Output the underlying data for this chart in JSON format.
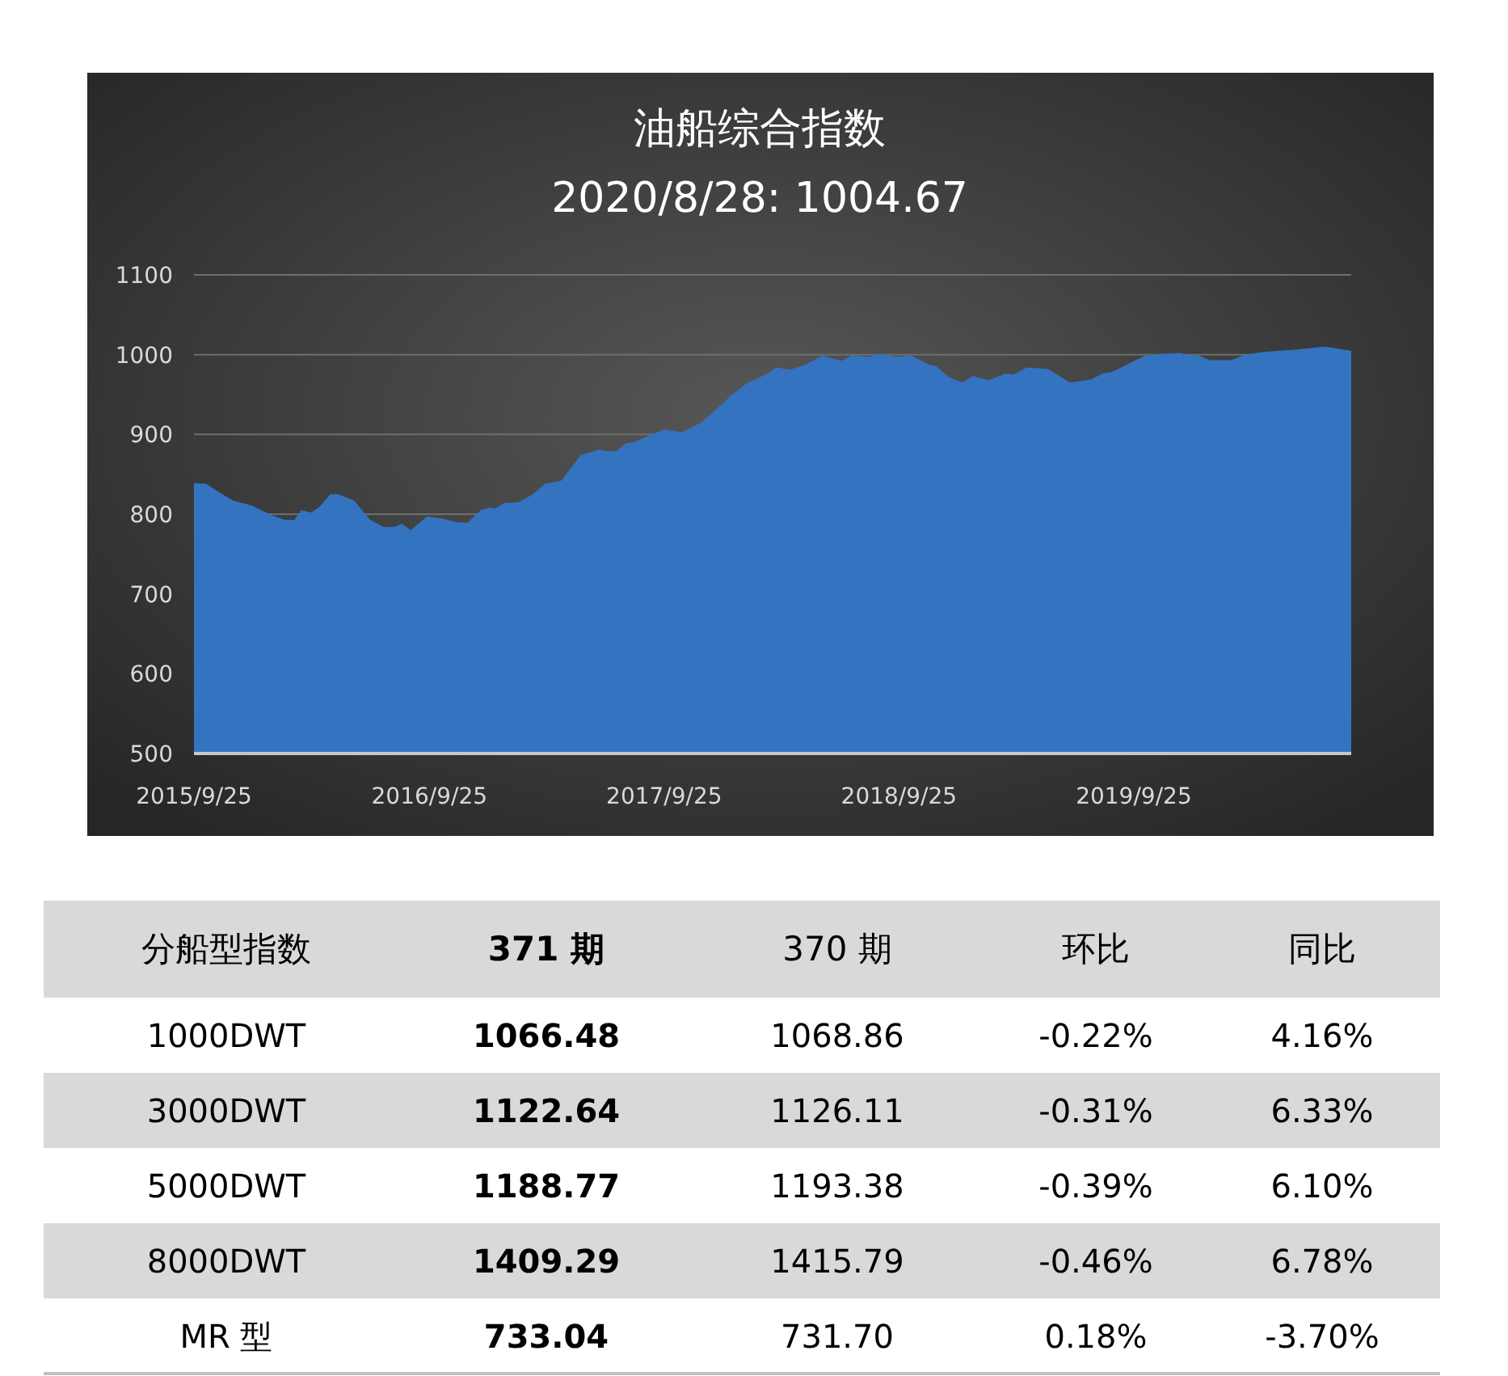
{
  "chart_data": [
    {
      "type": "area",
      "title": "油船综合指数",
      "subtitle": "2020/8/28: 1004.67",
      "x": [
        "2015-09-25",
        "2015-10-14",
        "2015-11-04",
        "2015-11-25",
        "2015-12-24",
        "2016-01-23",
        "2016-02-13",
        "2016-02-28",
        "2016-03-10",
        "2016-03-25",
        "2016-04-07",
        "2016-04-24",
        "2016-05-06",
        "2016-05-31",
        "2016-06-25",
        "2016-07-16",
        "2016-08-02",
        "2016-08-13",
        "2016-08-27",
        "2016-09-21",
        "2016-10-12",
        "2016-11-06",
        "2016-11-23",
        "2016-12-14",
        "2016-12-26",
        "2017-01-05",
        "2017-01-19",
        "2017-02-10",
        "2017-03-03",
        "2017-03-24",
        "2017-04-18",
        "2017-05-18",
        "2017-06-16",
        "2017-06-28",
        "2017-07-13",
        "2017-07-28",
        "2017-08-11",
        "2017-09-03",
        "2017-09-24",
        "2017-10-23",
        "2017-11-22",
        "2017-12-13",
        "2018-01-07",
        "2018-02-02",
        "2018-03-02",
        "2018-03-19",
        "2018-04-09",
        "2018-05-04",
        "2018-05-29",
        "2018-06-27",
        "2018-07-14",
        "2018-08-08",
        "2018-08-25",
        "2018-09-23",
        "2018-10-14",
        "2018-11-12",
        "2018-11-21",
        "2018-12-11",
        "2019-01-01",
        "2019-01-18",
        "2019-02-12",
        "2019-03-09",
        "2019-03-22",
        "2019-04-12",
        "2019-05-15",
        "2019-06-18",
        "2019-07-21",
        "2019-08-07",
        "2019-08-24",
        "2019-09-18",
        "2019-10-13",
        "2019-11-07",
        "2019-12-06",
        "2019-12-23",
        "2020-01-04",
        "2020-01-21",
        "2020-02-24",
        "2020-03-15",
        "2020-04-10",
        "2020-05-09",
        "2020-05-30",
        "2020-06-24",
        "2020-07-15",
        "2020-07-27",
        "2020-08-28"
      ],
      "series": [
        {
          "color": "#3473c0",
          "values": [
            839,
            838,
            827,
            817,
            811,
            799,
            793,
            793,
            805,
            802,
            809,
            825,
            825,
            817,
            793,
            784,
            784,
            788,
            780,
            797,
            795,
            790,
            789,
            805,
            808,
            807,
            814,
            815,
            824,
            838,
            842,
            874,
            881,
            879,
            879,
            889,
            891,
            899,
            906,
            903,
            915,
            930,
            949,
            965,
            975,
            984,
            981,
            988,
            999,
            992,
            999,
            997,
            1001,
            997,
            999,
            987,
            986,
            972,
            965,
            973,
            968,
            976,
            975,
            984,
            982,
            965,
            969,
            976,
            979,
            989,
            999,
            1001,
            1002,
            999,
            999,
            993,
            993,
            1000,
            1003,
            1005,
            1006,
            1008,
            1010,
            1009,
            1004.67
          ]
        }
      ],
      "xlim": [
        "2015-09-25",
        "2020-08-28"
      ],
      "xticks": [
        {
          "value": "2015-09-25",
          "label": "2015/9/25"
        },
        {
          "value": "2016-09-25",
          "label": "2016/9/25"
        },
        {
          "value": "2017-09-25",
          "label": "2017/9/25"
        },
        {
          "value": "2018-09-25",
          "label": "2018/9/25"
        },
        {
          "value": "2019-09-25",
          "label": "2019/9/25"
        }
      ],
      "ylim": [
        500,
        1100
      ],
      "yticks": [
        500,
        600,
        700,
        800,
        900,
        1000,
        1100
      ],
      "grid": "y"
    },
    {
      "type": "other",
      "annotations": [
        "分船型指数",
        "371 期",
        "370 期",
        "环比",
        "同比",
        "1000DWT",
        "1066.48",
        "1068.86",
        "-0.22%",
        "4.16%",
        "3000DWT",
        "1122.64",
        "1126.11",
        "-0.31%",
        "6.33%",
        "5000DWT",
        "1188.77",
        "1193.38",
        "-0.39%",
        "6.10%",
        "8000DWT",
        "1409.29",
        "1415.79",
        "-0.46%",
        "6.78%",
        "MR 型",
        "733.04",
        "731.70",
        "0.18%",
        "-3.70%"
      ]
    }
  ]
}
